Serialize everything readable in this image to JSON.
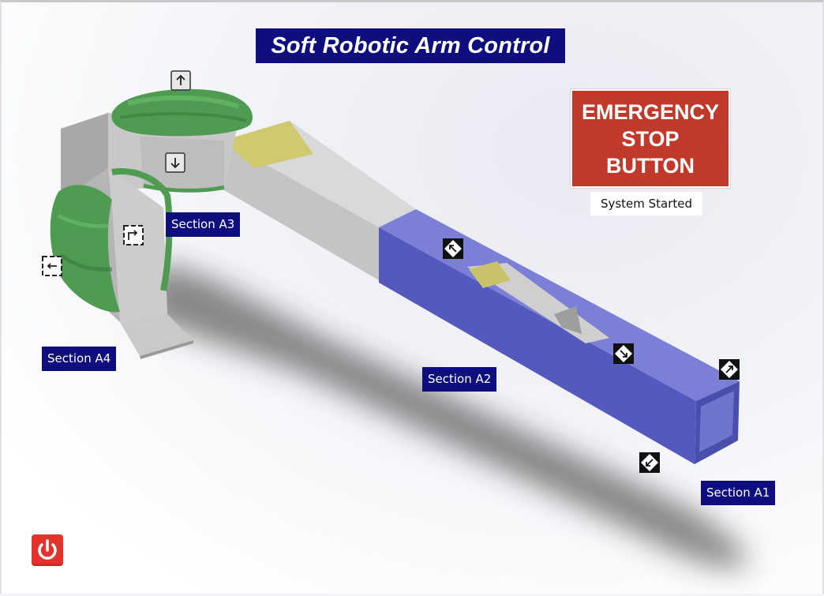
{
  "title": "Soft Robotic Arm Control",
  "emergency_stop": {
    "line1": "EMERGENCY",
    "line2": "STOP",
    "line3": "BUTTON"
  },
  "status": "System Started",
  "sections": {
    "a1": "Section A1",
    "a2": "Section A2",
    "a3": "Section A3",
    "a4": "Section A4"
  },
  "icons": {
    "arrow_up": "arrow-up-icon",
    "arrow_down": "arrow-down-icon",
    "rotate_right": "rotate-right-icon",
    "rotate_left": "rotate-left-icon",
    "arrow_up_left": "arrow-up-left-icon",
    "arrow_down_right": "arrow-down-right-icon",
    "arrow_up_right": "arrow-up-right-icon",
    "arrow_down_left": "arrow-down-left-icon",
    "power": "power-icon"
  },
  "colors": {
    "title_bg": "#0e0e7e",
    "emergency_bg": "#c0392b",
    "segment_blue": "#5a5fc0",
    "segment_gray": "#c9c9c9",
    "actuator_green": "#4f9b52",
    "pad_yellow": "#c8c36a",
    "power_red": "#e3332c"
  }
}
